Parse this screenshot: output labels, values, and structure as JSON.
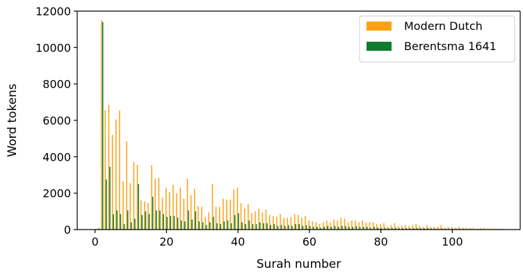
{
  "chart_data": {
    "type": "bar",
    "title": "",
    "xlabel": "Surah number",
    "ylabel": "Word tokens",
    "xlim": [
      -5,
      119
    ],
    "ylim": [
      0,
      12000
    ],
    "xticks": [
      0,
      20,
      40,
      60,
      80,
      100
    ],
    "yticks": [
      0,
      2000,
      4000,
      6000,
      8000,
      10000,
      12000
    ],
    "grid": false,
    "legend_position": "top-right",
    "x": [
      1,
      2,
      3,
      4,
      5,
      6,
      7,
      8,
      9,
      10,
      11,
      12,
      13,
      14,
      15,
      16,
      17,
      18,
      19,
      20,
      21,
      22,
      23,
      24,
      25,
      26,
      27,
      28,
      29,
      30,
      31,
      32,
      33,
      34,
      35,
      36,
      37,
      38,
      39,
      40,
      41,
      42,
      43,
      44,
      45,
      46,
      47,
      48,
      49,
      50,
      51,
      52,
      53,
      54,
      55,
      56,
      57,
      58,
      59,
      60,
      61,
      62,
      63,
      64,
      65,
      66,
      67,
      68,
      69,
      70,
      71,
      72,
      73,
      74,
      75,
      76,
      77,
      78,
      79,
      80,
      81,
      82,
      83,
      84,
      85,
      86,
      87,
      88,
      89,
      90,
      91,
      92,
      93,
      94,
      95,
      96,
      97,
      98,
      99,
      100,
      101,
      102,
      103,
      104,
      105,
      106,
      107,
      108,
      109,
      110,
      111,
      112,
      113,
      114
    ],
    "series": [
      {
        "name": "Modern Dutch",
        "color": "#ffa016",
        "values": [
          50,
          11500,
          6550,
          6850,
          5200,
          6050,
          6550,
          2650,
          4850,
          2550,
          3700,
          3550,
          1600,
          1550,
          1450,
          3550,
          2800,
          2850,
          1750,
          2300,
          2050,
          2450,
          2000,
          2300,
          1700,
          2800,
          1900,
          2250,
          1300,
          1250,
          700,
          950,
          2500,
          1250,
          1250,
          1700,
          1650,
          1650,
          2200,
          2300,
          1450,
          1150,
          1400,
          900,
          1000,
          1150,
          950,
          1100,
          800,
          750,
          700,
          850,
          650,
          650,
          700,
          850,
          800,
          650,
          750,
          500,
          450,
          400,
          300,
          400,
          500,
          400,
          550,
          500,
          650,
          600,
          400,
          500,
          500,
          400,
          500,
          400,
          400,
          400,
          300,
          300,
          350,
          150,
          250,
          350,
          200,
          200,
          250,
          200,
          250,
          300,
          200,
          150,
          250,
          150,
          150,
          150,
          250,
          100,
          150,
          150,
          100,
          150,
          100,
          100,
          80,
          100,
          50,
          80,
          100,
          50,
          50,
          50,
          50,
          50
        ]
      },
      {
        "name": "Berentsma 1641",
        "color": "#0f7c2e",
        "values": [
          60,
          11400,
          2750,
          3450,
          850,
          1050,
          850,
          300,
          1050,
          400,
          600,
          2500,
          800,
          1000,
          850,
          1800,
          1050,
          1050,
          850,
          700,
          750,
          750,
          650,
          500,
          450,
          1050,
          550,
          1000,
          450,
          400,
          250,
          400,
          700,
          350,
          300,
          450,
          500,
          350,
          800,
          900,
          400,
          300,
          500,
          300,
          300,
          400,
          350,
          350,
          250,
          300,
          200,
          250,
          200,
          250,
          200,
          300,
          300,
          200,
          250,
          200,
          150,
          150,
          100,
          150,
          200,
          150,
          200,
          150,
          200,
          200,
          150,
          150,
          200,
          150,
          150,
          150,
          100,
          150,
          100,
          100,
          100,
          80,
          100,
          100,
          80,
          80,
          80,
          80,
          80,
          80,
          80,
          80,
          80,
          60,
          60,
          60,
          60,
          50,
          50,
          50,
          50,
          50,
          50,
          40,
          50,
          30,
          40,
          40,
          30,
          30,
          30,
          30,
          30,
          30
        ]
      }
    ]
  }
}
